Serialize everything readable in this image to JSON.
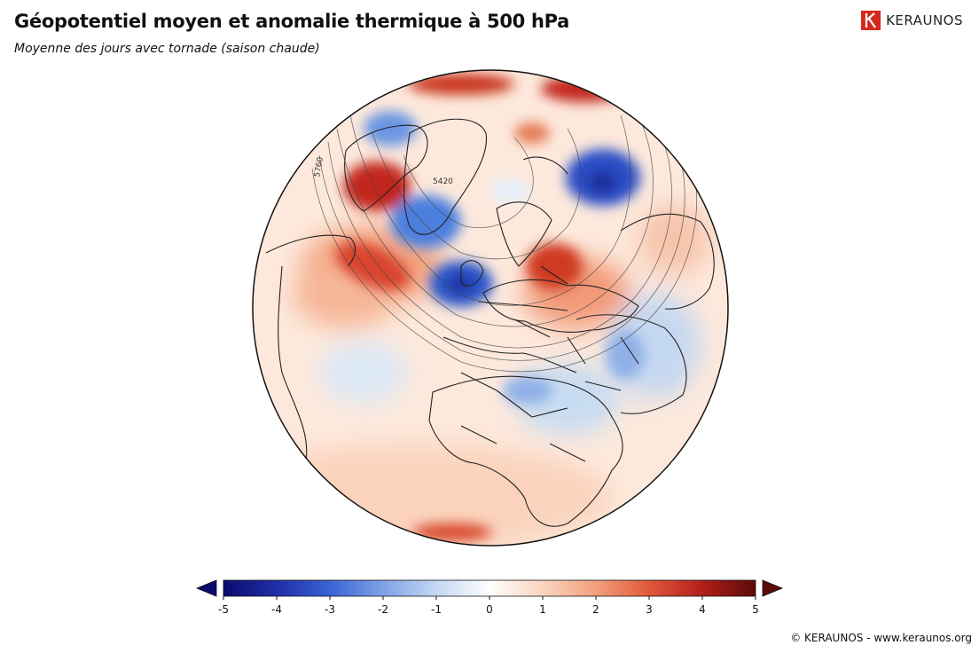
{
  "title": "Géopotentiel moyen et anomalie thermique à 500 hPa",
  "subtitle": "Moyenne des jours avec tornade (saison chaude)",
  "logo": {
    "text": "KERAUNOS",
    "color": "#d42a1e"
  },
  "contour_labels": [
    "5760",
    "5420"
  ],
  "colorbar": {
    "min": -5,
    "max": 5,
    "ticks": [
      "-5",
      "-4",
      "-3",
      "-2",
      "-1",
      "0",
      "1",
      "2",
      "3",
      "4",
      "5"
    ],
    "colors": {
      "neg_extreme": "#0b0b6e",
      "neutral": "#ffffff",
      "pos_extreme": "#5c0a0a"
    }
  },
  "copyright": "© KERAUNOS - www.keraunos.org"
}
